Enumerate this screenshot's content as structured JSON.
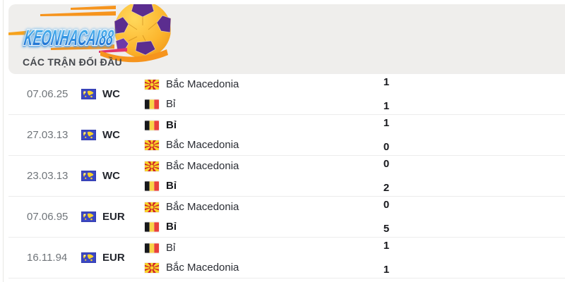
{
  "logo": {
    "text": "KEONHACAI88",
    "icon": "soccer-ball-icon"
  },
  "section": {
    "title": "CÁC TRẬN ĐỐI ĐẦU"
  },
  "colors": {
    "panel_bg": "#efeeec",
    "row_bg": "#ffffff",
    "separator": "#ececec",
    "date_text": "#70757a",
    "team_text": "#2a2d34",
    "score_text": "#17181c",
    "logo_blue_top": "#5ac1f3",
    "logo_blue_bottom": "#0f56c4",
    "swoosh_orange": "#f6941d",
    "swoosh_magenta": "#e0356f",
    "ball_yellow": "#ffce3f",
    "ball_purple": "#5b2d8f",
    "competition_flag_blue": "#3b47c4",
    "macedonia_red": "#ce2028",
    "macedonia_yellow": "#f8d22a",
    "belgium_black": "#17181c",
    "belgium_yellow": "#f7d247",
    "belgium_red": "#e8413c"
  },
  "matches": [
    {
      "date": "07.06.25",
      "competition": "WC",
      "competition_icon": "world-map-flag-icon",
      "rows": [
        {
          "team": "Bắc Macedonia",
          "flag": "north-macedonia-flag-icon",
          "score": "1",
          "winner": false
        },
        {
          "team": "Bỉ",
          "flag": "belgium-flag-icon",
          "score": "1",
          "winner": false
        }
      ]
    },
    {
      "date": "27.03.13",
      "competition": "WC",
      "competition_icon": "world-map-flag-icon",
      "rows": [
        {
          "team": "Bỉ",
          "flag": "belgium-flag-icon",
          "score": "1",
          "winner": true
        },
        {
          "team": "Bắc Macedonia",
          "flag": "north-macedonia-flag-icon",
          "score": "0",
          "winner": false
        }
      ]
    },
    {
      "date": "23.03.13",
      "competition": "WC",
      "competition_icon": "world-map-flag-icon",
      "rows": [
        {
          "team": "Bắc Macedonia",
          "flag": "north-macedonia-flag-icon",
          "score": "0",
          "winner": false
        },
        {
          "team": "Bỉ",
          "flag": "belgium-flag-icon",
          "score": "2",
          "winner": true
        }
      ]
    },
    {
      "date": "07.06.95",
      "competition": "EUR",
      "competition_icon": "world-map-flag-icon",
      "rows": [
        {
          "team": "Bắc Macedonia",
          "flag": "north-macedonia-flag-icon",
          "score": "0",
          "winner": false
        },
        {
          "team": "Bỉ",
          "flag": "belgium-flag-icon",
          "score": "5",
          "winner": true
        }
      ]
    },
    {
      "date": "16.11.94",
      "competition": "EUR",
      "competition_icon": "world-map-flag-icon",
      "rows": [
        {
          "team": "Bỉ",
          "flag": "belgium-flag-icon",
          "score": "1",
          "winner": false
        },
        {
          "team": "Bắc Macedonia",
          "flag": "north-macedonia-flag-icon",
          "score": "1",
          "winner": false
        }
      ]
    }
  ]
}
